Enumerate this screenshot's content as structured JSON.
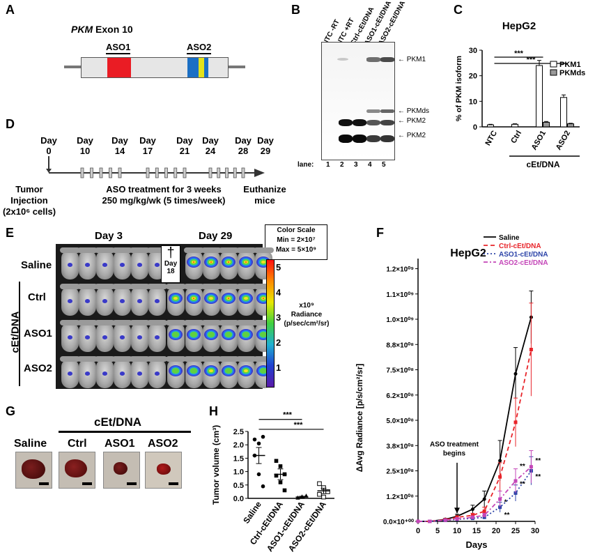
{
  "panels": {
    "a": "A",
    "b": "B",
    "c": "C",
    "d": "D",
    "e": "E",
    "f": "F",
    "g": "G",
    "h": "H"
  },
  "panel_a": {
    "title_italic": "PKM",
    "title_rest": " Exon 10",
    "aso1": "ASO1",
    "aso2": "ASO2"
  },
  "panel_b": {
    "lanes": [
      "NTC -RT",
      "NTC +RT",
      "Ctrl-cEt/DNA",
      "ASO1-cEt/DNA",
      "ASO2-cEt/DNA"
    ],
    "lane_label": "lane:",
    "lane_numbers": [
      "1",
      "2",
      "3",
      "4",
      "5"
    ],
    "bands": [
      "PKM1",
      "PKMds",
      "PKM2",
      "PKM2"
    ]
  },
  "panel_d": {
    "days": [
      "Day\n0",
      "Day\n10",
      "Day\n14",
      "Day\n17",
      "Day\n21",
      "Day\n24",
      "Day\n28",
      "Day\n29"
    ],
    "tumor_injection": "Tumor\nInjection\n(2x10⁶ cells)",
    "aso_treatment": "ASO treatment for 3 weeks\n250 mg/kg/wk (5 times/week)",
    "euthanize": "Euthanize\nmice"
  },
  "panel_e": {
    "day3": "Day 3",
    "day29": "Day 29",
    "rows": [
      "Saline",
      "Ctrl",
      "ASO1",
      "ASO2"
    ],
    "group": "cEt/DNA",
    "dagger": "†",
    "dagger_day": "Day\n18",
    "color_scale": "Color Scale\nMin = 2×10⁷\nMax = 5×10⁹",
    "ticks": [
      "5",
      "4",
      "3",
      "2",
      "1"
    ],
    "unit": "x10⁹\nRadiance\n(p/sec/cm²/sr)"
  },
  "panel_g": {
    "group": "cEt/DNA",
    "labels": [
      "Saline",
      "Ctrl",
      "ASO1",
      "ASO2"
    ]
  },
  "chart_data": [
    {
      "id": "C",
      "type": "bar",
      "title": "HepG2",
      "ylabel": "% of PKM isoform",
      "ylim": [
        0,
        30
      ],
      "yticks": [
        0,
        10,
        20,
        30
      ],
      "categories": [
        "NTC",
        "Ctrl",
        "ASO1",
        "ASO2"
      ],
      "group_label": "cEt/DNA",
      "series": [
        {
          "name": "PKM1",
          "color": "#ffffff",
          "values": [
            0.8,
            1.0,
            24.0,
            11.5
          ],
          "errors": [
            0.2,
            0.2,
            2.0,
            1.0
          ]
        },
        {
          "name": "PKMds",
          "color": "#999999",
          "values": [
            0.0,
            0.0,
            1.8,
            1.2
          ],
          "errors": [
            0,
            0,
            0.3,
            0.2
          ]
        }
      ],
      "significance": [
        "***",
        "***"
      ]
    },
    {
      "id": "F",
      "type": "line",
      "title": "HepG2",
      "xlabel": "Days",
      "ylabel": "ΔAvg Radiance [p/s/cm²/sr]",
      "xlim": [
        0,
        30
      ],
      "xticks": [
        "0",
        "5",
        "10",
        "15",
        "20",
        "25",
        "30"
      ],
      "ylim": [
        0,
        1300000000.0
      ],
      "yticks": [
        "0.0×10⁺⁰⁰",
        "1.2×10⁰⁸",
        "2.5×10⁰⁸",
        "3.8×10⁰⁸",
        "5.0×10⁰⁸",
        "6.2×10⁰⁸",
        "7.5×10⁰⁸",
        "8.8×10⁰⁸",
        "1.0×10⁰⁹",
        "1.1×10⁰⁹",
        "1.2×10⁰⁹"
      ],
      "ytick_values": [
        0,
        125000000.0,
        250000000.0,
        375000000.0,
        500000000.0,
        625000000.0,
        750000000.0,
        875000000.0,
        1000000000.0,
        1125000000.0,
        1250000000.0
      ],
      "annotation": "ASO treatment\nbegins",
      "annotation_x": 10,
      "x": [
        0,
        3,
        7,
        10,
        14,
        17,
        21,
        25,
        29
      ],
      "series": [
        {
          "name": "Saline",
          "color": "#000000",
          "dash": "",
          "values": [
            0,
            0,
            10000000.0,
            25000000.0,
            60000000.0,
            110000000.0,
            300000000.0,
            730000000.0,
            1010000000.0
          ],
          "errors": [
            0,
            0,
            5000000.0,
            10000000.0,
            20000000.0,
            40000000.0,
            100000000.0,
            130000000.0,
            130000000.0
          ]
        },
        {
          "name": "Ctrl-cEt/DNA",
          "color": "#e8242a",
          "dash": "6,4",
          "values": [
            0,
            0,
            8000000.0,
            20000000.0,
            30000000.0,
            50000000.0,
            220000000.0,
            490000000.0,
            850000000.0
          ],
          "errors": [
            0,
            0,
            4000000.0,
            8000000.0,
            10000000.0,
            20000000.0,
            70000000.0,
            120000000.0,
            230000000.0
          ]
        },
        {
          "name": "ASO1-cEt/DNA",
          "color": "#2c43a8",
          "dash": "2,3",
          "values": [
            0,
            0,
            5000000.0,
            10000000.0,
            15000000.0,
            20000000.0,
            70000000.0,
            140000000.0,
            250000000.0
          ],
          "errors": [
            0,
            0,
            2000000.0,
            4000000.0,
            5000000.0,
            8000000.0,
            25000000.0,
            40000000.0,
            70000000.0
          ]
        },
        {
          "name": "ASO2-cEt/DNA",
          "color": "#c446b8",
          "dash": "6,3,2,3",
          "values": [
            0,
            0,
            6000000.0,
            12000000.0,
            20000000.0,
            30000000.0,
            110000000.0,
            200000000.0,
            270000000.0
          ],
          "errors": [
            0,
            0,
            3000000.0,
            5000000.0,
            7000000.0,
            10000000.0,
            40000000.0,
            60000000.0,
            80000000.0
          ]
        }
      ],
      "significance": [
        "**",
        "**",
        "*",
        "**",
        "**",
        "**"
      ]
    },
    {
      "id": "H",
      "type": "scatter",
      "ylabel": "Tumor volume (cm³)",
      "ylim": [
        0,
        2.5
      ],
      "yticks": [
        "0.0",
        "0.5",
        "1.0",
        "1.5",
        "2.0",
        "2.5"
      ],
      "categories": [
        "Saline",
        "Ctrl-cEt/DNA",
        "ASO1-cEt/DNA",
        "ASO2-cEt/DNA"
      ],
      "markers": [
        "circle",
        "square",
        "triangle",
        "open-square"
      ],
      "points": [
        [
          2.2,
          2.05,
          2.3,
          1.6,
          0.9,
          0.45
        ],
        [
          1.4,
          1.2,
          0.9,
          0.85,
          0.6,
          0.3
        ],
        [
          0.02,
          0.05,
          0.1,
          0.03,
          0.07
        ],
        [
          0.55,
          0.4,
          0.25,
          0.15,
          0.05
        ]
      ],
      "means": [
        1.6,
        0.9,
        0.05,
        0.28
      ],
      "sem": [
        0.3,
        0.2,
        0.03,
        0.1
      ],
      "significance": [
        "***",
        "***"
      ]
    }
  ]
}
